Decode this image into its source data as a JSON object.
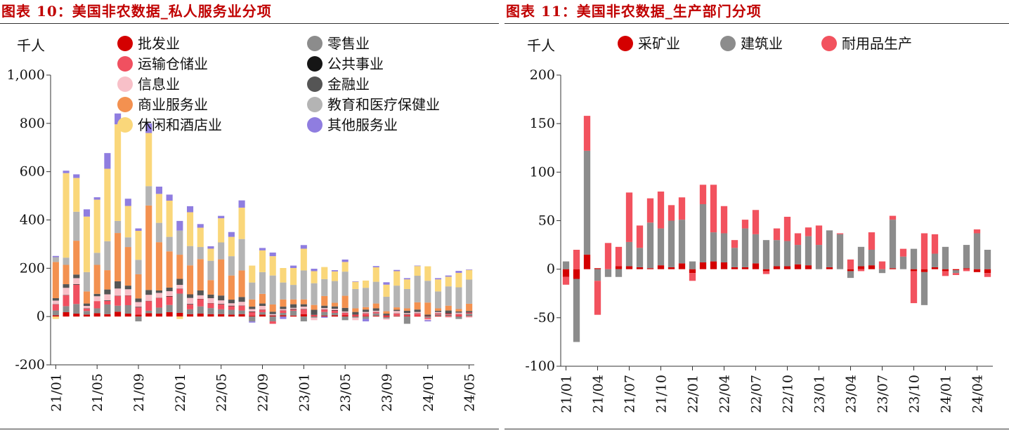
{
  "chart_data": [
    {
      "type": "bar",
      "title": "图表 10：美国非农数据_私人服务业分项",
      "ylabel": "千人",
      "ylim": [
        -200,
        1000
      ],
      "yticks": [
        -200,
        0,
        200,
        400,
        600,
        800,
        1000
      ],
      "ytick_labels": [
        "-200",
        "0",
        "200",
        "400",
        "600",
        "800",
        "1,000"
      ],
      "xtick_labels": [
        "21/01",
        "21/05",
        "21/09",
        "22/01",
        "22/05",
        "22/09",
        "23/01",
        "23/05",
        "23/09",
        "24/01",
        "24/05"
      ],
      "xtick_indices": [
        0,
        4,
        8,
        12,
        16,
        20,
        24,
        28,
        32,
        36,
        40
      ],
      "legend_columns": 2,
      "categories": [
        "21/01",
        "21/02",
        "21/03",
        "21/04",
        "21/05",
        "21/06",
        "21/07",
        "21/08",
        "21/09",
        "21/10",
        "21/11",
        "21/12",
        "22/01",
        "22/02",
        "22/03",
        "22/04",
        "22/05",
        "22/06",
        "22/07",
        "22/08",
        "22/09",
        "22/10",
        "22/11",
        "22/12",
        "23/01",
        "23/02",
        "23/03",
        "23/04",
        "23/05",
        "23/06",
        "23/07",
        "23/08",
        "23/09",
        "23/10",
        "23/11",
        "23/12",
        "24/01",
        "24/02",
        "24/03",
        "24/04",
        "24/05"
      ],
      "series": [
        {
          "name": "批发业",
          "color": "#d40000",
          "values": [
            5,
            18,
            12,
            8,
            14,
            10,
            20,
            12,
            8,
            14,
            12,
            18,
            15,
            10,
            12,
            10,
            10,
            8,
            10,
            4,
            8,
            4,
            5,
            4,
            10,
            2,
            4,
            5,
            5,
            3,
            3,
            3,
            -3,
            2,
            2,
            3,
            2,
            3,
            3,
            2,
            2
          ]
        },
        {
          "name": "零售业",
          "color": "#8c8c8c",
          "values": [
            20,
            25,
            40,
            15,
            20,
            40,
            25,
            35,
            -20,
            10,
            25,
            30,
            80,
            20,
            30,
            25,
            20,
            20,
            15,
            -20,
            10,
            -20,
            10,
            20,
            -20,
            -5,
            15,
            10,
            -15,
            -5,
            -10,
            10,
            -5,
            2,
            -30,
            0,
            -5,
            5,
            5,
            -10,
            10
          ]
        },
        {
          "name": "运输仓储业",
          "color": "#f05060",
          "values": [
            25,
            45,
            80,
            10,
            30,
            15,
            40,
            40,
            30,
            40,
            40,
            35,
            20,
            20,
            30,
            20,
            20,
            15,
            20,
            15,
            10,
            -10,
            10,
            5,
            20,
            5,
            10,
            10,
            10,
            5,
            10,
            5,
            5,
            8,
            5,
            10,
            -5,
            5,
            5,
            8,
            5
          ]
        },
        {
          "name": "公共事业",
          "color": "#151515",
          "values": [
            1,
            1,
            2,
            1,
            0,
            2,
            1,
            1,
            2,
            1,
            1,
            2,
            1,
            2,
            1,
            1,
            2,
            2,
            1,
            2,
            1,
            1,
            1,
            2,
            1,
            1,
            1,
            2,
            1,
            1,
            1,
            1,
            2,
            1,
            2,
            1,
            1,
            1,
            2,
            1,
            1
          ]
        },
        {
          "name": "信息业",
          "color": "#f8c0c8",
          "values": [
            15,
            30,
            25,
            10,
            20,
            25,
            30,
            25,
            20,
            25,
            20,
            20,
            15,
            25,
            15,
            20,
            15,
            10,
            15,
            10,
            15,
            5,
            5,
            5,
            10,
            -10,
            5,
            5,
            5,
            -10,
            5,
            5,
            -5,
            10,
            5,
            5,
            -5,
            5,
            -5,
            5,
            -5
          ]
        },
        {
          "name": "金融业",
          "color": "#555555",
          "values": [
            10,
            15,
            15,
            10,
            10,
            20,
            30,
            15,
            15,
            20,
            10,
            15,
            25,
            15,
            20,
            15,
            20,
            15,
            20,
            10,
            10,
            10,
            10,
            15,
            10,
            20,
            10,
            10,
            15,
            10,
            10,
            10,
            5,
            5,
            10,
            10,
            5,
            5,
            10,
            5,
            5
          ]
        },
        {
          "name": "商业服务业",
          "color": "#f39150",
          "values": [
            150,
            80,
            140,
            50,
            120,
            80,
            200,
            160,
            100,
            350,
            200,
            150,
            100,
            120,
            130,
            60,
            150,
            100,
            110,
            30,
            40,
            30,
            30,
            20,
            20,
            20,
            40,
            15,
            50,
            15,
            10,
            20,
            10,
            10,
            10,
            30,
            50,
            10,
            20,
            10,
            30
          ]
        },
        {
          "name": "教育和医疗保健业",
          "color": "#b4b4b4",
          "values": [
            20,
            30,
            120,
            80,
            50,
            120,
            50,
            40,
            60,
            80,
            80,
            60,
            100,
            80,
            50,
            80,
            70,
            80,
            130,
            70,
            90,
            120,
            70,
            60,
            120,
            90,
            70,
            90,
            100,
            80,
            80,
            90,
            60,
            90,
            80,
            110,
            90,
            70,
            80,
            90,
            100
          ]
        },
        {
          "name": "休闲和酒店业",
          "color": "#fad77a",
          "values": [
            -10,
            350,
            140,
            230,
            220,
            300,
            400,
            130,
            120,
            220,
            120,
            150,
            -10,
            140,
            80,
            50,
            100,
            80,
            130,
            70,
            90,
            80,
            60,
            70,
            90,
            50,
            50,
            40,
            40,
            30,
            30,
            60,
            50,
            60,
            40,
            40,
            60,
            50,
            40,
            60,
            40
          ]
        },
        {
          "name": "其他服务业",
          "color": "#8f7de0",
          "values": [
            5,
            10,
            15,
            30,
            10,
            65,
            45,
            30,
            10,
            40,
            30,
            25,
            40,
            25,
            15,
            10,
            10,
            20,
            30,
            -5,
            10,
            15,
            -10,
            10,
            15,
            10,
            -5,
            5,
            10,
            2,
            -10,
            5,
            10,
            5,
            5,
            2,
            -5,
            5,
            5,
            8,
            2
          ]
        }
      ]
    },
    {
      "type": "bar",
      "title": "图表 11：美国非农数据_生产部门分项",
      "ylabel": "千人",
      "ylim": [
        -100,
        200
      ],
      "yticks": [
        -100,
        -50,
        0,
        50,
        100,
        150,
        200
      ],
      "ytick_labels": [
        "-100",
        "-50",
        "0",
        "50",
        "100",
        "150",
        "200"
      ],
      "xtick_labels": [
        "21/01",
        "21/04",
        "21/07",
        "21/10",
        "22/01",
        "22/04",
        "22/07",
        "22/10",
        "23/01",
        "23/04",
        "23/07",
        "23/10",
        "24/01",
        "24/04"
      ],
      "xtick_indices": [
        0,
        3,
        6,
        9,
        12,
        15,
        18,
        21,
        24,
        27,
        30,
        33,
        36,
        39
      ],
      "legend_columns": 3,
      "categories": [
        "21/01",
        "21/02",
        "21/03",
        "21/04",
        "21/05",
        "21/06",
        "21/07",
        "21/08",
        "21/09",
        "21/10",
        "21/11",
        "21/12",
        "22/01",
        "22/02",
        "22/03",
        "22/04",
        "22/05",
        "22/06",
        "22/07",
        "22/08",
        "22/09",
        "22/10",
        "22/11",
        "22/12",
        "23/01",
        "23/02",
        "23/03",
        "23/04",
        "23/05",
        "23/06",
        "23/07",
        "23/08",
        "23/09",
        "23/10",
        "23/11",
        "23/12",
        "24/01",
        "24/02",
        "24/03",
        "24/04",
        "24/05"
      ],
      "series": [
        {
          "name": "采矿业",
          "color": "#d40000",
          "values": [
            -8,
            -10,
            15,
            1,
            0,
            3,
            3,
            2,
            1,
            4,
            2,
            6,
            -4,
            7,
            8,
            7,
            2,
            2,
            6,
            -2,
            3,
            3,
            5,
            4,
            0,
            2,
            0,
            -2,
            3,
            4,
            0,
            1,
            0,
            -2,
            -3,
            2,
            -2,
            -1,
            1,
            -3,
            -4
          ]
        },
        {
          "name": "建筑业",
          "color": "#8c8c8c",
          "values": [
            8,
            -65,
            107,
            -12,
            -8,
            -8,
            25,
            20,
            47,
            38,
            48,
            45,
            8,
            60,
            30,
            30,
            20,
            40,
            30,
            30,
            27,
            26,
            20,
            30,
            25,
            38,
            36,
            -7,
            20,
            16,
            -4,
            50,
            13,
            21,
            -34,
            14,
            23,
            -3,
            24,
            37,
            20
          ]
        },
        {
          "name": "耐用品生产",
          "color": "#f2525e",
          "values": [
            -8,
            20,
            36,
            -35,
            27,
            20,
            51,
            23,
            25,
            38,
            16,
            23,
            -8,
            20,
            49,
            28,
            8,
            9,
            25,
            -3,
            12,
            25,
            12,
            9,
            20,
            0,
            1,
            10,
            -2,
            18,
            8,
            4,
            8,
            -33,
            37,
            20,
            -5,
            -2,
            -2,
            4,
            -4
          ]
        }
      ]
    }
  ]
}
